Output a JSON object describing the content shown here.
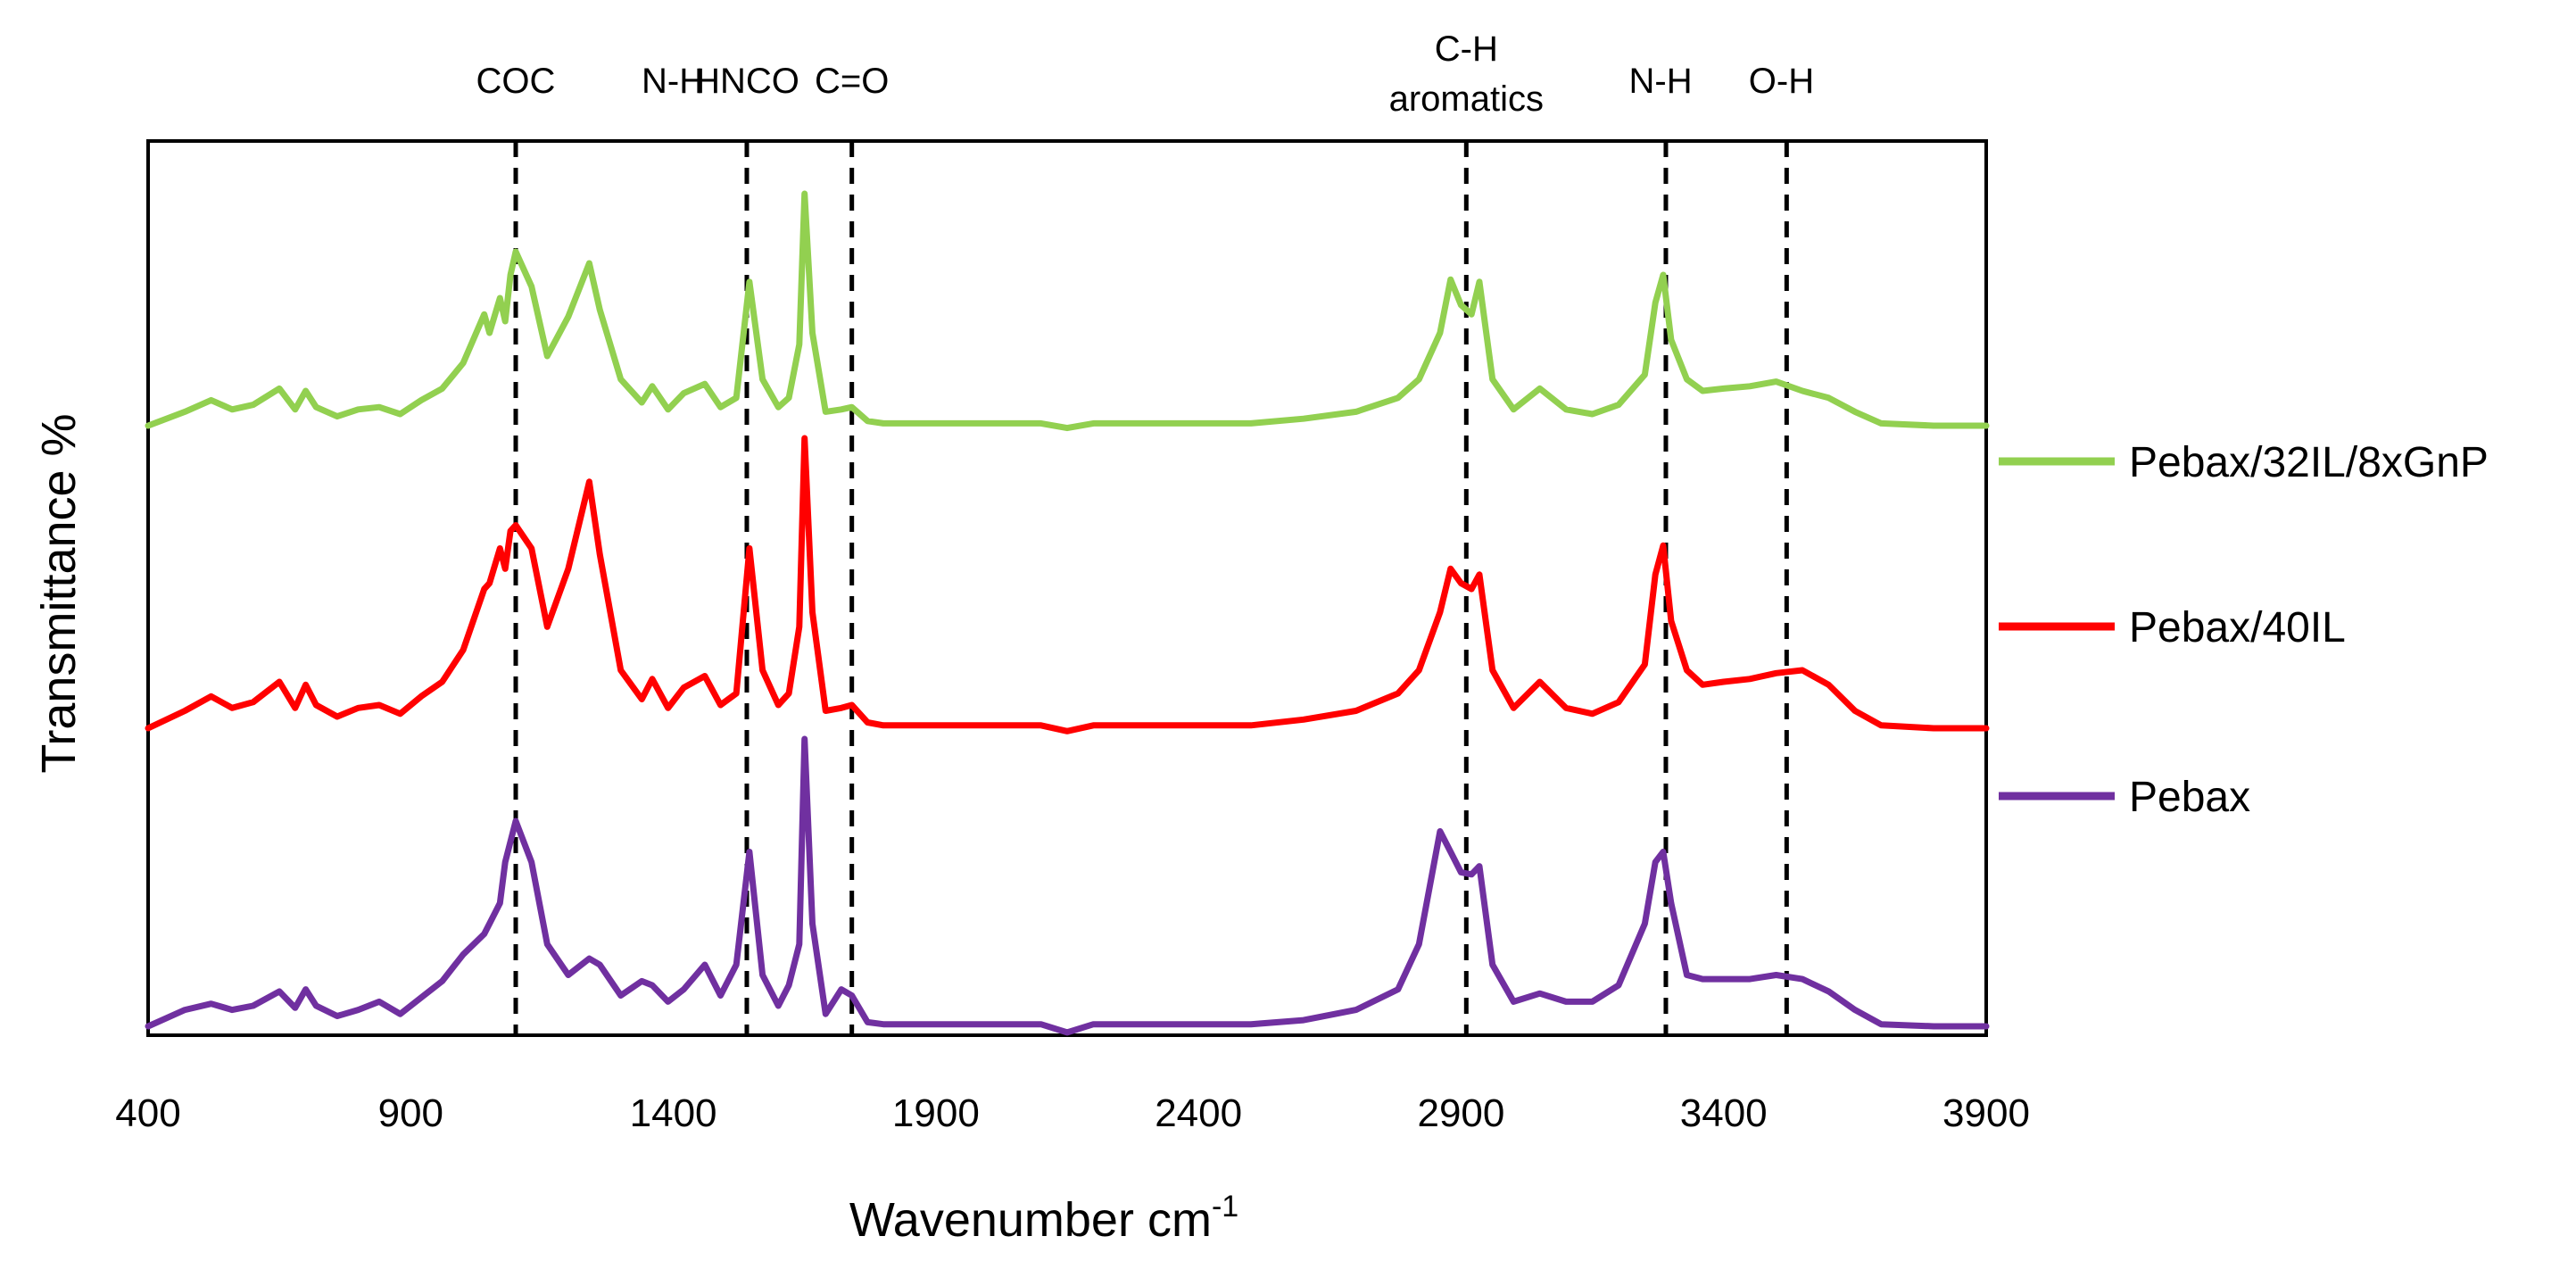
{
  "chart_data": {
    "type": "line",
    "title": "",
    "xlabel": "Wavenumber cm",
    "xlabel_superscript": "-1",
    "ylabel": "Transmittance %",
    "xlim": [
      400,
      3900
    ],
    "x_ticks": [
      400,
      900,
      1400,
      1900,
      2400,
      2900,
      3400,
      3900
    ],
    "y_ticks_shown": false,
    "grid": false,
    "legend_position": "right",
    "colors": {
      "Pebax/32IL/8xGnP": "#92d050",
      "Pebax/40IL": "#ff0000",
      "Pebax": "#7030a0",
      "markers": "#000000"
    },
    "annotations": [
      {
        "label": "COC",
        "x": 1100
      },
      {
        "label": "N-H",
        "x": 1400
      },
      {
        "label": "HNCO",
        "x": 1540
      },
      {
        "label": "C=O",
        "x": 1740
      },
      {
        "label": "C-H aromatics",
        "x": 2910
      },
      {
        "label": "N-H",
        "x": 3280
      },
      {
        "label": "O-H",
        "x": 3510
      }
    ],
    "annotation_lines_x": [
      1100,
      1540,
      1740,
      2910,
      3290,
      3520
    ],
    "series": [
      {
        "name": "Pebax/32IL/8xGnP",
        "x": [
          400,
          470,
          520,
          560,
          600,
          650,
          680,
          700,
          720,
          760,
          800,
          840,
          880,
          920,
          960,
          1000,
          1040,
          1050,
          1070,
          1080,
          1090,
          1100,
          1130,
          1160,
          1200,
          1240,
          1260,
          1300,
          1340,
          1360,
          1390,
          1420,
          1460,
          1490,
          1520,
          1545,
          1570,
          1600,
          1620,
          1640,
          1650,
          1665,
          1690,
          1720,
          1740,
          1770,
          1800,
          1900,
          2000,
          2100,
          2150,
          2200,
          2300,
          2400,
          2500,
          2600,
          2700,
          2780,
          2820,
          2860,
          2880,
          2900,
          2920,
          2935,
          2960,
          3000,
          3050,
          3100,
          3150,
          3200,
          3250,
          3270,
          3285,
          3300,
          3330,
          3360,
          3400,
          3450,
          3500,
          3550,
          3600,
          3650,
          3700,
          3800,
          3900
        ],
        "y": [
          0,
          6,
          11,
          7,
          9,
          16,
          7,
          15,
          8,
          4,
          7,
          8,
          5,
          11,
          16,
          27,
          48,
          40,
          55,
          45,
          65,
          75,
          60,
          30,
          47,
          70,
          50,
          20,
          10,
          17,
          7,
          14,
          18,
          8,
          12,
          62,
          20,
          8,
          12,
          35,
          100,
          40,
          6,
          7,
          8,
          2,
          1,
          1,
          1,
          1,
          -1,
          1,
          1,
          1,
          1,
          3,
          6,
          12,
          20,
          40,
          63,
          52,
          48,
          62,
          20,
          7,
          16,
          7,
          5,
          9,
          22,
          53,
          65,
          37,
          20,
          15,
          16,
          17,
          19,
          15,
          12,
          6,
          1,
          0,
          0
        ]
      },
      {
        "name": "Pebax/40IL",
        "x": [
          400,
          470,
          520,
          560,
          600,
          650,
          680,
          700,
          720,
          760,
          800,
          840,
          880,
          920,
          960,
          1000,
          1040,
          1050,
          1070,
          1080,
          1090,
          1100,
          1130,
          1160,
          1200,
          1240,
          1260,
          1300,
          1340,
          1360,
          1390,
          1420,
          1460,
          1490,
          1520,
          1545,
          1570,
          1600,
          1620,
          1640,
          1650,
          1665,
          1690,
          1720,
          1740,
          1770,
          1800,
          1900,
          2000,
          2100,
          2150,
          2200,
          2300,
          2400,
          2500,
          2600,
          2700,
          2780,
          2820,
          2860,
          2880,
          2900,
          2920,
          2935,
          2960,
          3000,
          3050,
          3100,
          3150,
          3200,
          3250,
          3270,
          3285,
          3300,
          3330,
          3360,
          3400,
          3450,
          3500,
          3550,
          3600,
          3650,
          3700,
          3800,
          3900
        ],
        "y": [
          0,
          6,
          11,
          7,
          9,
          16,
          7,
          15,
          8,
          4,
          7,
          8,
          5,
          11,
          16,
          27,
          48,
          50,
          62,
          55,
          68,
          70,
          62,
          35,
          55,
          85,
          60,
          20,
          10,
          17,
          7,
          14,
          18,
          8,
          12,
          62,
          20,
          8,
          12,
          35,
          100,
          40,
          6,
          7,
          8,
          2,
          1,
          1,
          1,
          1,
          -1,
          1,
          1,
          1,
          1,
          3,
          6,
          12,
          20,
          40,
          55,
          50,
          48,
          53,
          20,
          7,
          16,
          7,
          5,
          9,
          22,
          53,
          63,
          37,
          20,
          15,
          16,
          17,
          19,
          20,
          15,
          6,
          1,
          0,
          0
        ]
      },
      {
        "name": "Pebax",
        "x": [
          400,
          470,
          520,
          560,
          600,
          650,
          680,
          700,
          720,
          760,
          800,
          840,
          880,
          920,
          960,
          1000,
          1040,
          1050,
          1070,
          1080,
          1090,
          1100,
          1130,
          1160,
          1200,
          1240,
          1260,
          1300,
          1340,
          1360,
          1390,
          1420,
          1460,
          1490,
          1520,
          1545,
          1570,
          1600,
          1620,
          1640,
          1650,
          1665,
          1690,
          1720,
          1740,
          1770,
          1800,
          1900,
          2000,
          2100,
          2150,
          2200,
          2300,
          2400,
          2500,
          2600,
          2700,
          2780,
          2820,
          2860,
          2880,
          2900,
          2920,
          2935,
          2960,
          3000,
          3050,
          3100,
          3150,
          3200,
          3250,
          3270,
          3285,
          3300,
          3330,
          3360,
          3400,
          3450,
          3500,
          3550,
          3600,
          3650,
          3700,
          3800,
          3900
        ],
        "y": [
          0,
          8,
          11,
          8,
          10,
          17,
          9,
          18,
          10,
          5,
          8,
          12,
          6,
          14,
          22,
          35,
          45,
          50,
          60,
          80,
          90,
          100,
          80,
          40,
          25,
          33,
          30,
          15,
          22,
          20,
          12,
          18,
          30,
          15,
          30,
          85,
          25,
          10,
          20,
          40,
          140,
          50,
          6,
          18,
          15,
          2,
          1,
          1,
          1,
          1,
          -3,
          1,
          1,
          1,
          1,
          3,
          8,
          18,
          40,
          95,
          85,
          75,
          74,
          78,
          30,
          12,
          16,
          12,
          12,
          20,
          50,
          80,
          85,
          60,
          25,
          23,
          23,
          23,
          25,
          23,
          17,
          8,
          1,
          0,
          0
        ]
      }
    ]
  }
}
